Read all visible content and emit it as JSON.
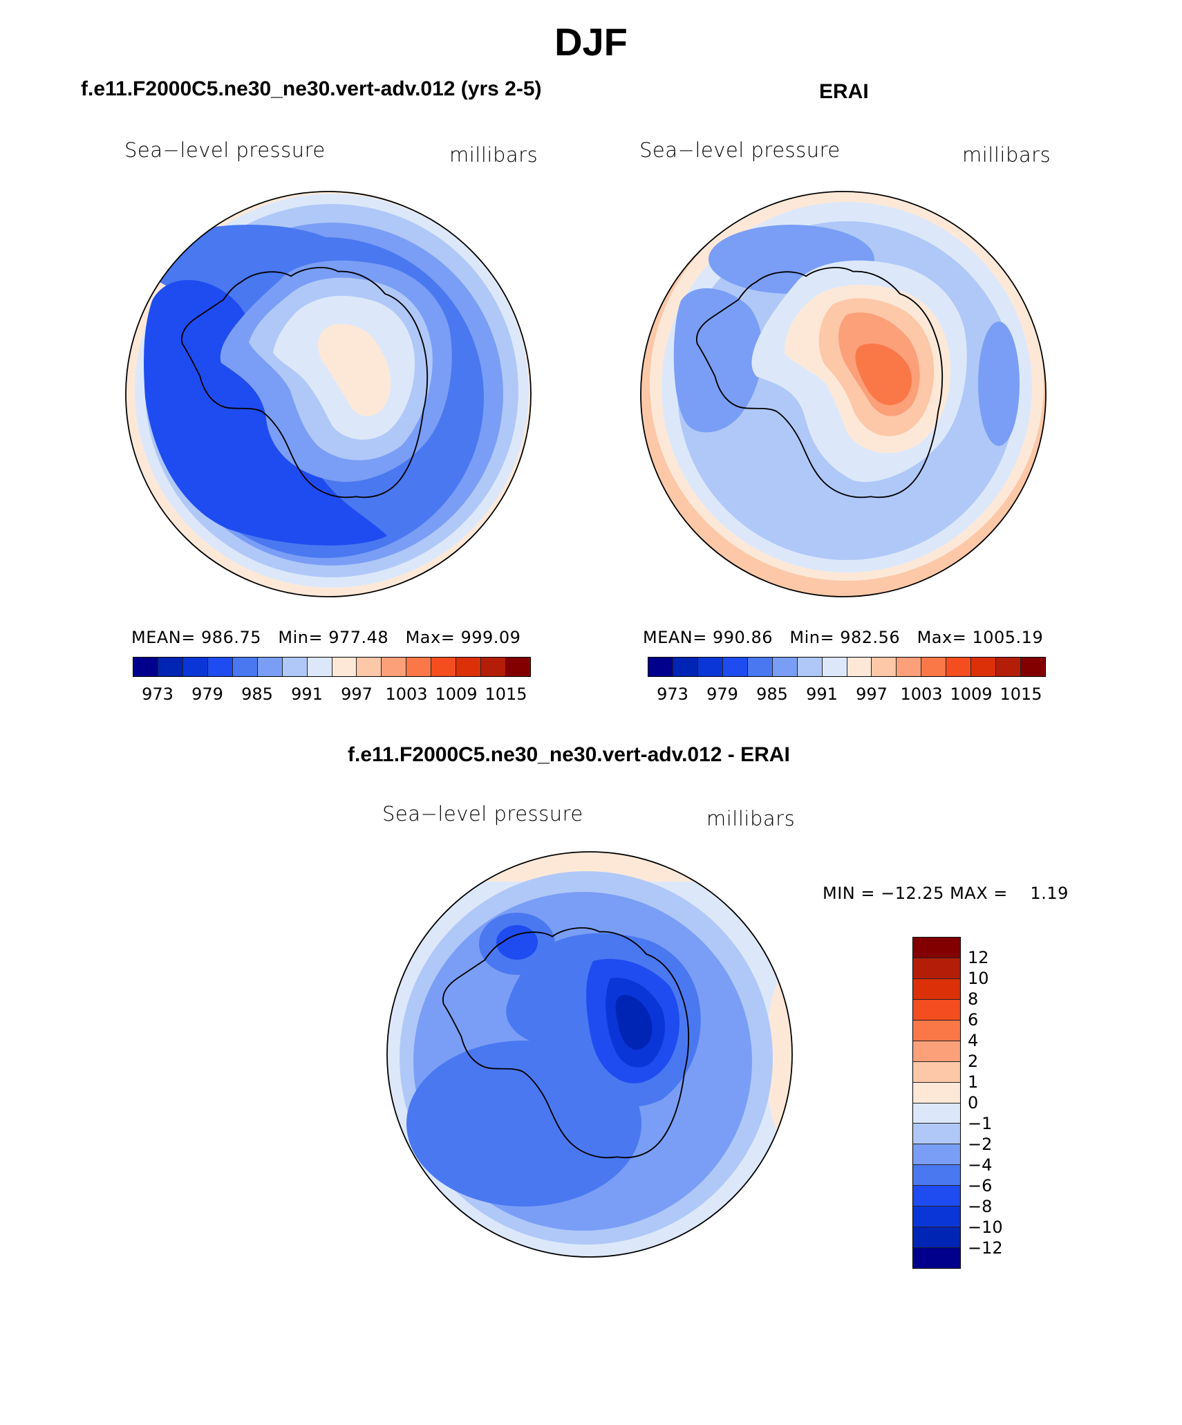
{
  "title": "DJF",
  "palette": [
    "#00008c",
    "#0024b4",
    "#0a36d8",
    "#1e4cf0",
    "#4a78f0",
    "#7a9ef5",
    "#b0c8f8",
    "#dce8fa",
    "#fde8d8",
    "#fcc8a8",
    "#fca07a",
    "#fa7848",
    "#f44e20",
    "#dc3008",
    "#b41e08",
    "#820000"
  ],
  "diff_palette": [
    "#00008c",
    "#0024b4",
    "#0a36d8",
    "#1e4cf0",
    "#4a78f0",
    "#7a9ef5",
    "#b0c8f8",
    "#dce8fa",
    "#fde8d8",
    "#fcc8a8",
    "#fca07a",
    "#fa7848",
    "#f44e20",
    "#dc3008",
    "#b41e08",
    "#820000"
  ],
  "panels": {
    "model": {
      "heading": "f.e11.F2000C5.ne30_ne30.vert-adv.012 (yrs 2-5)",
      "variable": "Sea−level pressure",
      "units": "millibars",
      "mean_label": "MEAN=",
      "mean": "986.75",
      "min_label": "Min=",
      "min": "977.48",
      "max_label": "Max=",
      "max": "999.09",
      "field_levels": [
        4,
        5,
        6,
        7,
        8
      ],
      "colorbar_ticks": [
        "973",
        "979",
        "985",
        "991",
        "997",
        "1003",
        "1009",
        "1015"
      ]
    },
    "erai": {
      "heading": "ERAI",
      "variable": "Sea−level pressure",
      "units": "millibars",
      "mean_label": "MEAN=",
      "mean": "990.86",
      "min_label": "Min=",
      "min": "982.56",
      "max_label": "Max=",
      "max": "1005.19",
      "field_levels": [
        5,
        6,
        7,
        8,
        9,
        10,
        11
      ],
      "colorbar_ticks": [
        "973",
        "979",
        "985",
        "991",
        "997",
        "1003",
        "1009",
        "1015"
      ]
    },
    "diff": {
      "heading": "f.e11.F2000C5.ne30_ne30.vert-adv.012 - ERAI",
      "variable": "Sea−level pressure",
      "units": "millibars",
      "min_label": "MIN =",
      "min": "−12.25",
      "max_label": "MAX =",
      "max": "1.19",
      "colorbar_ticks": [
        "12",
        "10",
        "8",
        "6",
        "4",
        "2",
        "1",
        "0",
        "−1",
        "−2",
        "−4",
        "−6",
        "−8",
        "−10",
        "−12"
      ]
    }
  }
}
